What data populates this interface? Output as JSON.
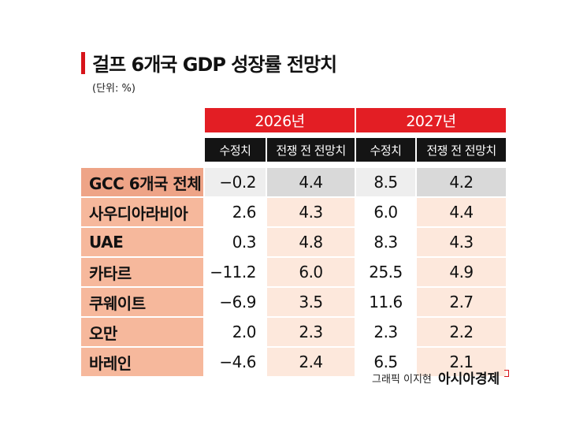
{
  "header": {
    "title": "걸프 6개국 GDP 성장률 전망치",
    "unit": "(단위: %)"
  },
  "table": {
    "years": [
      "2026년",
      "2027년"
    ],
    "columns": [
      "수정치",
      "전쟁 전 전망치",
      "수정치",
      "전쟁 전 전망치"
    ],
    "rows": [
      [
        "GCC 6개국 전체",
        "−0.2",
        "4.4",
        "8.5",
        "4.2"
      ],
      [
        "사우디아라비아",
        "2.6",
        "4.3",
        "6.0",
        "4.4"
      ],
      [
        "UAE",
        "0.3",
        "4.8",
        "8.3",
        "4.3"
      ],
      [
        "카타르",
        "−11.2",
        "6.0",
        "25.5",
        "4.9"
      ],
      [
        "쿠웨이트",
        "−6.9",
        "3.5",
        "11.6",
        "2.7"
      ],
      [
        "오만",
        "2.0",
        "2.3",
        "2.3",
        "2.2"
      ],
      [
        "바레인",
        "−4.6",
        "2.4",
        "6.5",
        "2.1"
      ]
    ]
  },
  "footer": {
    "credit": "그래픽 이지현",
    "brand": "아시아경제"
  }
}
